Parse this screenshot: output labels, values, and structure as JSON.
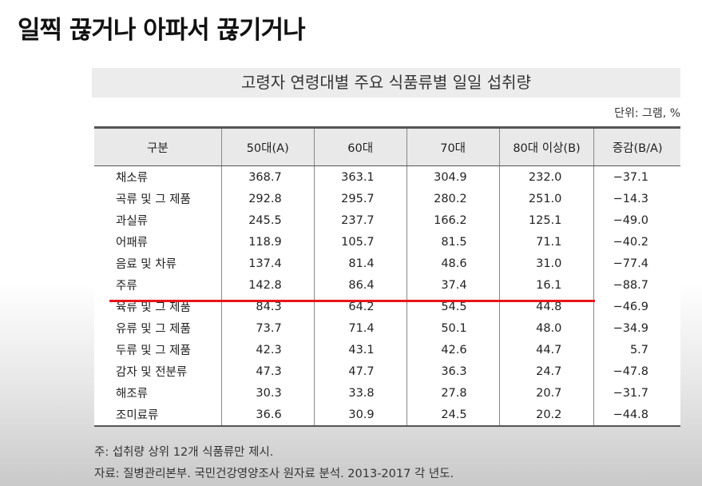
{
  "header": {
    "title": "일찍 끊거나 아파서 끊기거나"
  },
  "table": {
    "title": "고령자 연령대별 주요 식품류별 일일 섭취량",
    "unit": "단위: 그램, %",
    "columns": [
      "구분",
      "50대(A)",
      "60대",
      "70대",
      "80대 이상(B)",
      "증감(B/A)"
    ],
    "rows": [
      [
        "채소류",
        "368.7",
        "363.1",
        "304.9",
        "232.0",
        "−37.1"
      ],
      [
        "곡류 및 그 제품",
        "292.8",
        "295.7",
        "280.2",
        "251.0",
        "−14.3"
      ],
      [
        "과실류",
        "245.5",
        "237.7",
        "166.2",
        "125.1",
        "−49.0"
      ],
      [
        "어패류",
        "118.9",
        "105.7",
        "81.5",
        "71.1",
        "−40.2"
      ],
      [
        "음료 및 차류",
        "137.4",
        "81.4",
        "48.6",
        "31.0",
        "−77.4"
      ],
      [
        "주류",
        "142.8",
        "86.4",
        "37.4",
        "16.1",
        "−88.7"
      ],
      [
        "육류 및 그 제품",
        "84.3",
        "64.2",
        "54.5",
        "44.8",
        "−46.9"
      ],
      [
        "유류 및 그 제품",
        "73.7",
        "71.4",
        "50.1",
        "48.0",
        "−34.9"
      ],
      [
        "두류 및 그 제품",
        "42.3",
        "43.1",
        "42.6",
        "44.7",
        "5.7"
      ],
      [
        "감자 및 전분류",
        "47.3",
        "47.7",
        "36.3",
        "24.7",
        "−47.8"
      ],
      [
        "해조류",
        "30.3",
        "33.8",
        "27.8",
        "20.7",
        "−31.7"
      ],
      [
        "조미료류",
        "36.6",
        "30.9",
        "24.5",
        "20.2",
        "−44.8"
      ]
    ],
    "notes": [
      "주: 섭취량 상위 12개 식품류만 제시.",
      "자료: 질병관리본부. 국민건강영양조사 원자료 분석. 2013-2017 각 년도."
    ]
  }
}
